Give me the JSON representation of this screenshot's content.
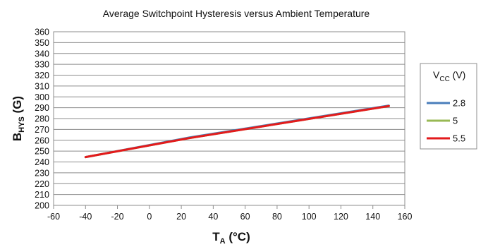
{
  "chart_data": {
    "type": "line",
    "title": "Average Switchpoint Hysteresis versus Ambient Temperature",
    "xlabel": {
      "main": "T",
      "sub": "A",
      "unit": " (°C)"
    },
    "ylabel": {
      "main": "B",
      "sub": "HYS",
      "unit": " (G)"
    },
    "xlim": [
      -60,
      160
    ],
    "ylim": [
      200,
      360
    ],
    "xticks": [
      -60,
      -40,
      -20,
      0,
      20,
      40,
      60,
      80,
      100,
      120,
      140,
      160
    ],
    "yticks": [
      200,
      210,
      220,
      230,
      240,
      250,
      260,
      270,
      280,
      290,
      300,
      310,
      320,
      330,
      340,
      350,
      360
    ],
    "grid": "horizontal",
    "legend": {
      "title": {
        "main": "V",
        "sub": "CC",
        "unit": " (V)"
      },
      "placement": "right"
    },
    "series": [
      {
        "name": "2.8",
        "color": "#4a7ebb",
        "x": [
          -40,
          25,
          150
        ],
        "y": [
          244.5,
          262.5,
          292
        ]
      },
      {
        "name": "5",
        "color": "#98b954",
        "x": [
          -40,
          25,
          150
        ],
        "y": [
          244.5,
          262,
          291.5
        ]
      },
      {
        "name": "5.5",
        "color": "#e31a1c",
        "x": [
          -40,
          25,
          150
        ],
        "y": [
          244.5,
          262,
          291.5
        ]
      }
    ]
  }
}
